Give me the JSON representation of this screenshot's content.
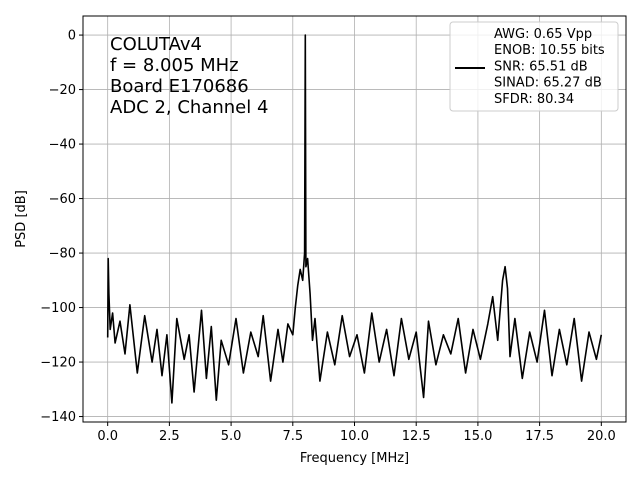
{
  "chart_data": {
    "type": "line",
    "xlabel": "Frequency [MHz]",
    "ylabel": "PSD [dB]",
    "xlim": [
      -1.0,
      21.0
    ],
    "ylim": [
      -142,
      7
    ],
    "xticks": [
      0.0,
      2.5,
      5.0,
      7.5,
      10.0,
      12.5,
      15.0,
      17.5,
      20.0
    ],
    "xtick_labels": [
      "0.0",
      "2.5",
      "5.0",
      "7.5",
      "10.0",
      "12.5",
      "15.0",
      "17.5",
      "20.0"
    ],
    "yticks": [
      0,
      -20,
      -40,
      -60,
      -80,
      -100,
      -120,
      -140
    ],
    "ytick_labels": [
      "0",
      "−20",
      "−40",
      "−60",
      "−80",
      "−100",
      "−120",
      "−140"
    ],
    "grid": true,
    "legend_position": "top-right",
    "annotation_position": "top-left",
    "annotation_lines": [
      "COLUTAv4",
      "f = 8.005 MHz",
      "Board E170686",
      "ADC 2, Channel 4"
    ],
    "legend_lines": [
      "AWG: 0.65 Vpp",
      "ENOB: 10.55 bits",
      "SNR: 65.51 dB",
      "SINAD: 65.27 dB",
      "SFDR: 80.34"
    ],
    "line_color": "#000000",
    "series": [
      {
        "points": [
          [
            0.0,
            -111
          ],
          [
            0.02,
            -82
          ],
          [
            0.05,
            -95
          ],
          [
            0.1,
            -108
          ],
          [
            0.2,
            -102
          ],
          [
            0.3,
            -113
          ],
          [
            0.5,
            -105
          ],
          [
            0.7,
            -117
          ],
          [
            0.9,
            -99
          ],
          [
            1.2,
            -124
          ],
          [
            1.5,
            -103
          ],
          [
            1.8,
            -120
          ],
          [
            2.0,
            -108
          ],
          [
            2.2,
            -125
          ],
          [
            2.4,
            -110
          ],
          [
            2.6,
            -135
          ],
          [
            2.8,
            -104
          ],
          [
            3.1,
            -119
          ],
          [
            3.3,
            -110
          ],
          [
            3.5,
            -131
          ],
          [
            3.8,
            -101
          ],
          [
            4.0,
            -126
          ],
          [
            4.2,
            -107
          ],
          [
            4.4,
            -134
          ],
          [
            4.6,
            -112
          ],
          [
            4.9,
            -121
          ],
          [
            5.2,
            -104
          ],
          [
            5.5,
            -124
          ],
          [
            5.8,
            -109
          ],
          [
            6.1,
            -118
          ],
          [
            6.3,
            -103
          ],
          [
            6.6,
            -127
          ],
          [
            6.9,
            -108
          ],
          [
            7.1,
            -120
          ],
          [
            7.3,
            -106
          ],
          [
            7.5,
            -110
          ],
          [
            7.6,
            -100
          ],
          [
            7.7,
            -92
          ],
          [
            7.8,
            -86
          ],
          [
            7.9,
            -90
          ],
          [
            7.98,
            -80
          ],
          [
            8.005,
            0
          ],
          [
            8.03,
            -85
          ],
          [
            8.1,
            -82
          ],
          [
            8.2,
            -95
          ],
          [
            8.3,
            -112
          ],
          [
            8.4,
            -104
          ],
          [
            8.6,
            -127
          ],
          [
            8.9,
            -109
          ],
          [
            9.2,
            -121
          ],
          [
            9.5,
            -103
          ],
          [
            9.8,
            -118
          ],
          [
            10.1,
            -110
          ],
          [
            10.4,
            -124
          ],
          [
            10.7,
            -102
          ],
          [
            11.0,
            -120
          ],
          [
            11.3,
            -108
          ],
          [
            11.6,
            -125
          ],
          [
            11.9,
            -104
          ],
          [
            12.2,
            -119
          ],
          [
            12.5,
            -109
          ],
          [
            12.8,
            -133
          ],
          [
            13.0,
            -105
          ],
          [
            13.3,
            -121
          ],
          [
            13.6,
            -110
          ],
          [
            13.9,
            -117
          ],
          [
            14.2,
            -104
          ],
          [
            14.5,
            -124
          ],
          [
            14.8,
            -108
          ],
          [
            15.1,
            -119
          ],
          [
            15.4,
            -106
          ],
          [
            15.6,
            -96
          ],
          [
            15.8,
            -112
          ],
          [
            16.0,
            -90
          ],
          [
            16.1,
            -85
          ],
          [
            16.2,
            -93
          ],
          [
            16.3,
            -118
          ],
          [
            16.5,
            -104
          ],
          [
            16.8,
            -126
          ],
          [
            17.1,
            -109
          ],
          [
            17.4,
            -120
          ],
          [
            17.7,
            -101
          ],
          [
            18.0,
            -125
          ],
          [
            18.3,
            -108
          ],
          [
            18.6,
            -121
          ],
          [
            18.9,
            -104
          ],
          [
            19.2,
            -127
          ],
          [
            19.5,
            -109
          ],
          [
            19.8,
            -119
          ],
          [
            20.0,
            -110
          ]
        ]
      }
    ]
  }
}
